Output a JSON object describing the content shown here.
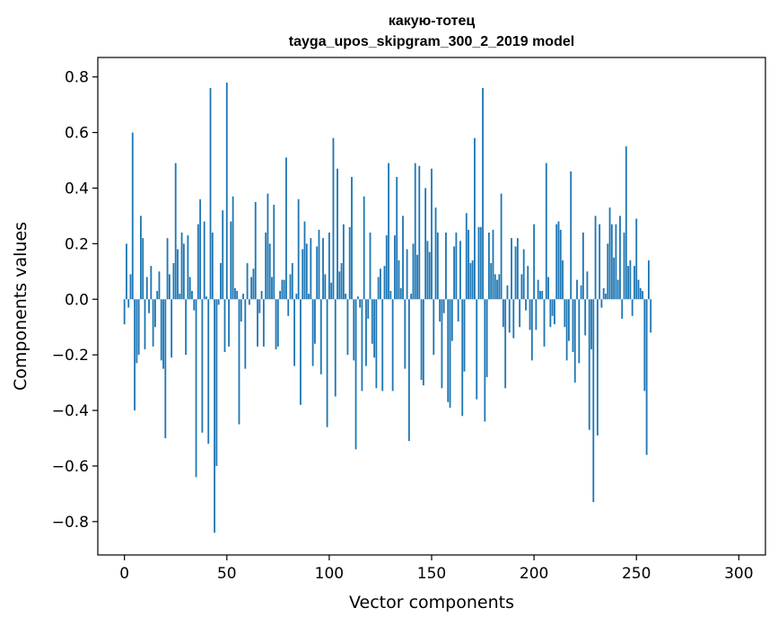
{
  "chart_data": {
    "type": "bar",
    "title": "какую-тотец",
    "subtitle": "tayga_upos_skipgram_300_2_2019 model",
    "xlabel": "Vector components",
    "ylabel": "Components values",
    "xlim": [
      -13,
      313
    ],
    "ylim": [
      -0.92,
      0.87
    ],
    "xticks": [
      0,
      50,
      100,
      150,
      200,
      250,
      300
    ],
    "xtick_labels": [
      "0",
      "50",
      "100",
      "150",
      "200",
      "250",
      "300"
    ],
    "yticks": [
      -0.8,
      -0.6,
      -0.4,
      -0.2,
      0.0,
      0.2,
      0.4,
      0.6,
      0.8
    ],
    "ytick_labels": [
      "−0.8",
      "−0.6",
      "−0.4",
      "−0.2",
      "0.0",
      "0.2",
      "0.4",
      "0.6",
      "0.8"
    ],
    "bar_color": "#1f77b4",
    "values": [
      -0.09,
      0.2,
      -0.03,
      0.09,
      0.6,
      -0.4,
      -0.23,
      -0.2,
      0.3,
      0.22,
      -0.18,
      0.08,
      -0.05,
      0.12,
      -0.17,
      -0.1,
      0.03,
      0.1,
      -0.22,
      -0.25,
      -0.5,
      0.22,
      0.09,
      -0.21,
      0.13,
      0.49,
      0.18,
      0.02,
      0.24,
      0.2,
      -0.2,
      0.23,
      0.08,
      0.03,
      -0.04,
      -0.64,
      0.27,
      0.36,
      -0.48,
      0.28,
      0.01,
      -0.52,
      0.76,
      0.24,
      -0.84,
      -0.6,
      -0.02,
      0.13,
      0.32,
      -0.19,
      0.78,
      -0.17,
      0.28,
      0.37,
      0.04,
      0.03,
      -0.45,
      -0.08,
      0.02,
      -0.25,
      0.13,
      -0.02,
      0.08,
      0.11,
      0.35,
      -0.17,
      -0.05,
      0.03,
      -0.17,
      0.24,
      0.38,
      0.2,
      0.08,
      0.34,
      -0.18,
      -0.17,
      0.03,
      0.07,
      0.07,
      0.51,
      -0.06,
      0.09,
      0.13,
      -0.24,
      0.02,
      0.36,
      -0.38,
      0.18,
      0.28,
      0.2,
      0.02,
      0.22,
      -0.24,
      -0.16,
      0.19,
      0.25,
      -0.27,
      0.22,
      0.09,
      -0.46,
      0.24,
      0.06,
      0.58,
      -0.35,
      0.47,
      0.1,
      0.13,
      0.27,
      0.02,
      -0.2,
      0.26,
      0.44,
      -0.22,
      -0.54,
      0.01,
      -0.03,
      -0.33,
      0.37,
      -0.24,
      -0.07,
      0.24,
      -0.16,
      -0.21,
      -0.32,
      0.08,
      0.11,
      -0.33,
      0.12,
      0.23,
      0.49,
      0.03,
      -0.33,
      0.23,
      0.44,
      0.14,
      0.04,
      0.3,
      -0.25,
      0.18,
      -0.51,
      0.02,
      0.2,
      0.49,
      0.16,
      0.48,
      -0.29,
      -0.31,
      0.4,
      0.21,
      0.17,
      0.47,
      -0.2,
      0.33,
      0.24,
      -0.08,
      -0.32,
      -0.05,
      0.24,
      -0.37,
      -0.39,
      -0.15,
      0.19,
      0.24,
      -0.08,
      0.21,
      -0.42,
      -0.26,
      0.31,
      0.25,
      0.13,
      0.14,
      0.58,
      -0.36,
      0.26,
      0.26,
      0.76,
      -0.44,
      -0.28,
      0.24,
      0.13,
      0.25,
      0.09,
      0.07,
      0.09,
      0.38,
      -0.1,
      -0.32,
      0.05,
      -0.12,
      0.22,
      -0.14,
      0.19,
      0.22,
      -0.1,
      0.09,
      0.18,
      -0.04,
      0.12,
      -0.11,
      -0.22,
      0.27,
      -0.11,
      0.07,
      0.03,
      0.03,
      -0.17,
      0.49,
      0.08,
      -0.1,
      -0.06,
      -0.09,
      0.27,
      0.28,
      0.25,
      0.14,
      -0.1,
      -0.22,
      -0.15,
      0.46,
      -0.19,
      -0.3,
      0.07,
      -0.23,
      0.05,
      0.24,
      -0.13,
      0.1,
      -0.47,
      -0.18,
      -0.73,
      0.3,
      -0.49,
      0.27,
      -0.03,
      0.04,
      0.02,
      0.2,
      0.33,
      0.27,
      0.15,
      0.27,
      0.07,
      0.3,
      -0.07,
      0.24,
      0.55,
      0.12,
      0.14,
      -0.06,
      0.12,
      0.29,
      0.07,
      0.04,
      0.03,
      -0.33,
      -0.56,
      0.14,
      -0.12
    ]
  }
}
